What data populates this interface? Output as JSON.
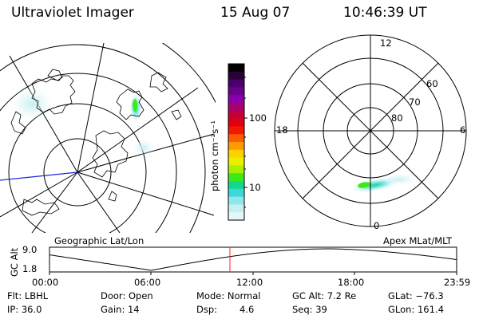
{
  "header": {
    "title": "Ultraviolet Imager",
    "date": "15 Aug 07",
    "time": "10:46:39 UT"
  },
  "colorbar": {
    "label": "photon cm⁻²s⁻¹",
    "ticks": [
      "100",
      "10"
    ],
    "colors": [
      "#000000",
      "#2b003a",
      "#4a006b",
      "#6a008e",
      "#8a00a8",
      "#a8006e",
      "#c4003c",
      "#e00010",
      "#f21800",
      "#ff5a00",
      "#ff9a00",
      "#ffd000",
      "#e8f000",
      "#a8ef00",
      "#3cea1a",
      "#14d890",
      "#3ad8d8",
      "#8ee8ea",
      "#c4f0f2",
      "#e4f6f8"
    ]
  },
  "left_map": {
    "caption": "Geographic Lat/Lon"
  },
  "right_polar": {
    "caption": "Apex MLat/MLT",
    "mlt_labels": [
      "12",
      "18",
      "6",
      "0"
    ],
    "lat_labels": [
      "60",
      "70",
      "80"
    ]
  },
  "timeline": {
    "axis_label": "GC Alt",
    "y_ticks": [
      "9.0",
      "1.8"
    ],
    "x_ticks": [
      "00:00",
      "06:00",
      "12:00",
      "18:00",
      "23:59"
    ],
    "cursor_color": "#ff2020"
  },
  "info": {
    "row1": [
      "Flt: LBHL",
      "Door: Open",
      "Mode: Normal",
      "GC Alt: 7.2 Re",
      "GLat: −76.3"
    ],
    "row2": [
      "IP: 36.0",
      "Gain: 14",
      "Dsp:",
      "4.6",
      "Seq: 39",
      "GLon: 161.4"
    ]
  }
}
